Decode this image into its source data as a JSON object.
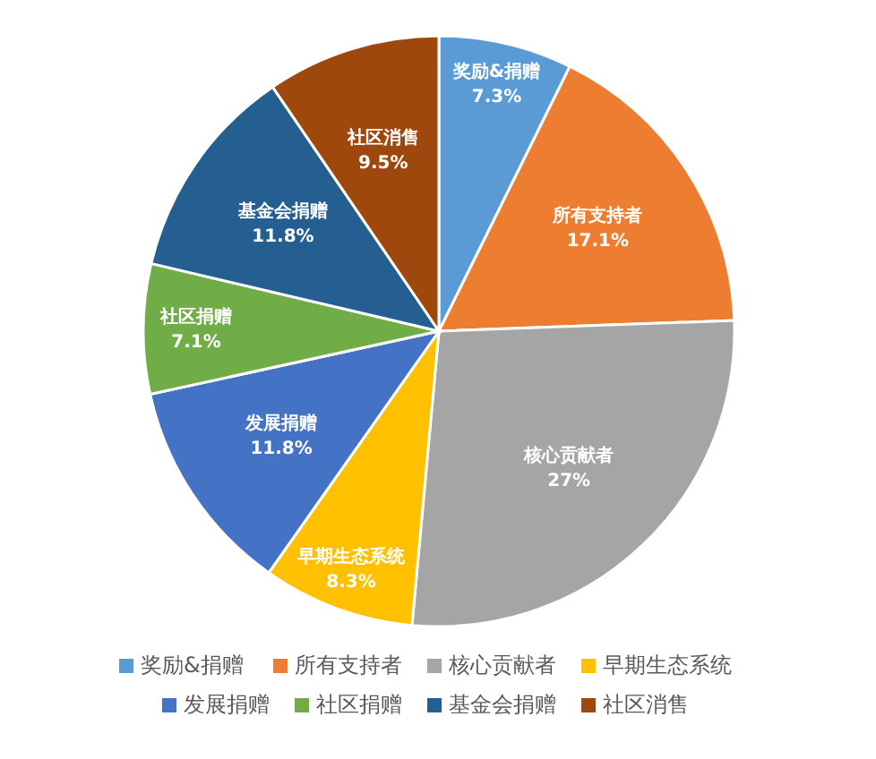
{
  "chart_data": {
    "type": "pie",
    "categories": [
      "奖励&捐赠",
      "所有支持者",
      "核心贡献者",
      "早期生态系统",
      "发展捐赠",
      "社区捐赠",
      "基金会捐赠",
      "社区消售"
    ],
    "values": [
      7.3,
      17.1,
      27,
      8.3,
      11.8,
      7.1,
      11.8,
      9.5
    ],
    "colors": [
      "#5b9bd5",
      "#ed7d31",
      "#a5a5a5",
      "#ffc000",
      "#4472c4",
      "#70ad47",
      "#255e91",
      "#9e480e"
    ],
    "value_labels": [
      "7.3%",
      "17.1%",
      "27%",
      "8.3%",
      "11.8%",
      "7.1%",
      "11.8%",
      "9.5%"
    ],
    "legend": "bottom"
  }
}
